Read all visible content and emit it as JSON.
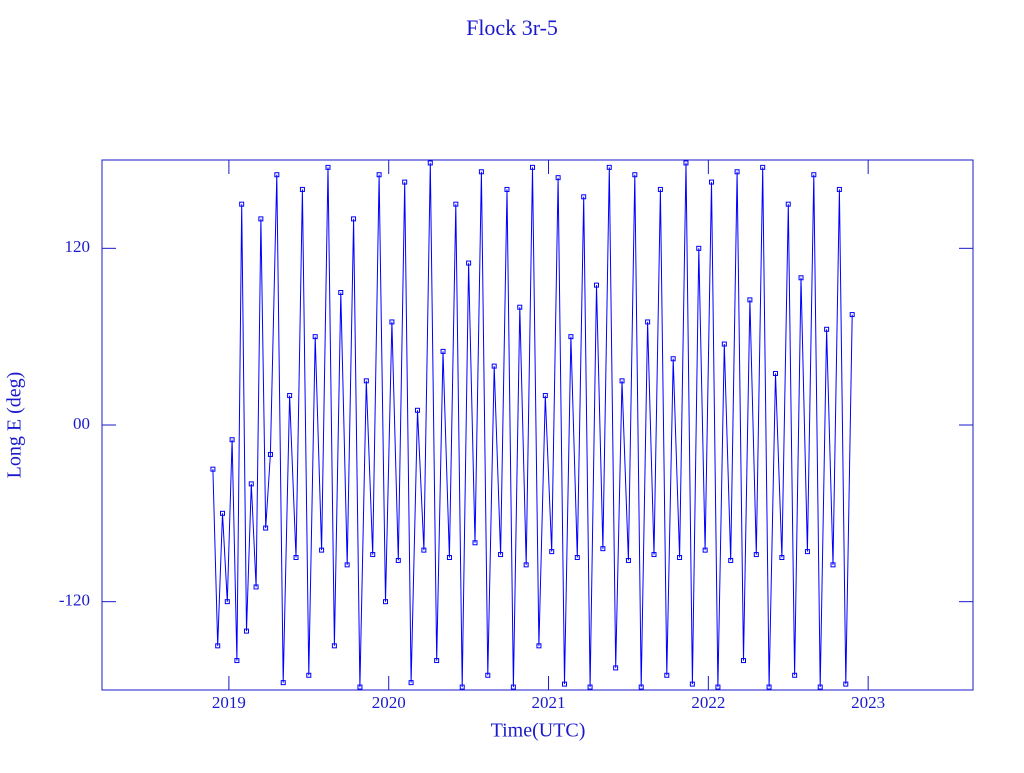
{
  "chart_data": {
    "type": "line",
    "title": "Flock 3r-5",
    "x_label": "Time(UTC)",
    "y_label": "Long E (deg)",
    "xlim": [
      2018.206,
      2023.656
    ],
    "xticks": [
      2019,
      2020,
      2021,
      2022,
      2023
    ],
    "ylim": [
      -180,
      180
    ],
    "yticks": [
      {
        "value": -120,
        "label": "-120"
      },
      {
        "value": 0,
        "label": "00"
      },
      {
        "value": 120,
        "label": "120"
      }
    ],
    "series": [
      {
        "color": "#0000ff",
        "x": [
          2018.9,
          2018.93,
          2018.96,
          2018.99,
          2019.02,
          2019.05,
          2019.08,
          2019.11,
          2019.14,
          2019.17,
          2019.2,
          2019.23,
          2019.26,
          2019.3,
          2019.34,
          2019.38,
          2019.42,
          2019.46,
          2019.5,
          2019.54,
          2019.58,
          2019.62,
          2019.66,
          2019.7,
          2019.74,
          2019.78,
          2019.82,
          2019.86,
          2019.9,
          2019.94,
          2019.98,
          2020.02,
          2020.06,
          2020.1,
          2020.14,
          2020.18,
          2020.22,
          2020.26,
          2020.3,
          2020.34,
          2020.38,
          2020.42,
          2020.46,
          2020.5,
          2020.54,
          2020.58,
          2020.62,
          2020.66,
          2020.7,
          2020.74,
          2020.78,
          2020.82,
          2020.86,
          2020.9,
          2020.94,
          2020.98,
          2021.02,
          2021.06,
          2021.1,
          2021.14,
          2021.18,
          2021.22,
          2021.26,
          2021.3,
          2021.34,
          2021.38,
          2021.42,
          2021.46,
          2021.5,
          2021.54,
          2021.58,
          2021.62,
          2021.66,
          2021.7,
          2021.74,
          2021.78,
          2021.82,
          2021.86,
          2021.9,
          2021.94,
          2021.98,
          2022.02,
          2022.06,
          2022.1,
          2022.14,
          2022.18,
          2022.22,
          2022.26,
          2022.3,
          2022.34,
          2022.38,
          2022.42,
          2022.46,
          2022.5,
          2022.54,
          2022.58,
          2022.62,
          2022.66,
          2022.7,
          2022.74,
          2022.78,
          2022.82,
          2022.86,
          2022.9
        ],
        "values": [
          -30,
          -150,
          -60,
          -120,
          -10,
          -160,
          150,
          -140,
          -40,
          -110,
          140,
          -70,
          -20,
          170,
          -175,
          20,
          -90,
          160,
          -170,
          60,
          -85,
          175,
          -150,
          90,
          -95,
          140,
          -178,
          30,
          -88,
          170,
          -120,
          70,
          -92,
          165,
          -175,
          10,
          -85,
          178,
          -160,
          50,
          -90,
          150,
          -178,
          110,
          -80,
          172,
          -170,
          40,
          -88,
          160,
          -178,
          80,
          -95,
          175,
          -150,
          20,
          -86,
          168,
          -176,
          60,
          -90,
          155,
          -178,
          95,
          -84,
          175,
          -165,
          30,
          -92,
          170,
          -178,
          70,
          -88,
          160,
          -170,
          45,
          -90,
          178,
          -176,
          120,
          -85,
          165,
          -178,
          55,
          -92,
          172,
          -160,
          85,
          -88,
          175,
          -178,
          35,
          -90,
          150,
          -170,
          100,
          -86,
          170,
          -178,
          65,
          -95,
          160,
          -176,
          75
        ]
      }
    ]
  }
}
